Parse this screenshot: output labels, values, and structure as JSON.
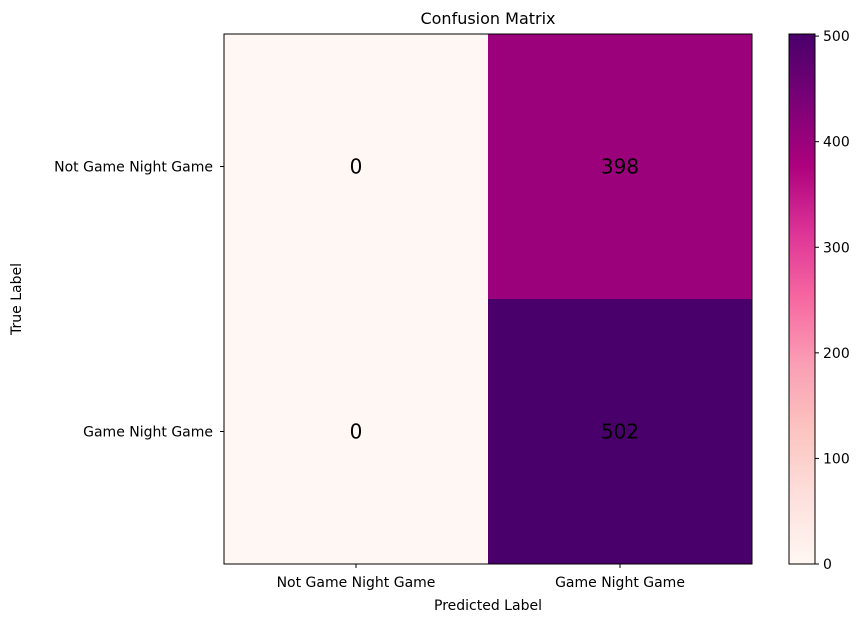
{
  "chart_data": {
    "type": "heatmap",
    "title": "Confusion Matrix",
    "xlabel": "Predicted Label",
    "ylabel": "True Label",
    "x_categories": [
      "Not Game Night Game",
      "Game Night Game"
    ],
    "y_categories": [
      "Not Game Night Game",
      "Game Night Game"
    ],
    "values": [
      [
        0,
        398
      ],
      [
        0,
        502
      ]
    ],
    "cell_labels": [
      [
        "0",
        "398"
      ],
      [
        "0",
        "502"
      ]
    ],
    "colormap": "RdPu",
    "colorbar": {
      "min": 0,
      "max": 502,
      "ticks": [
        0,
        100,
        200,
        300,
        400,
        500
      ],
      "tick_labels": [
        "0",
        "100",
        "200",
        "300",
        "400",
        "500"
      ]
    },
    "grid": false
  }
}
